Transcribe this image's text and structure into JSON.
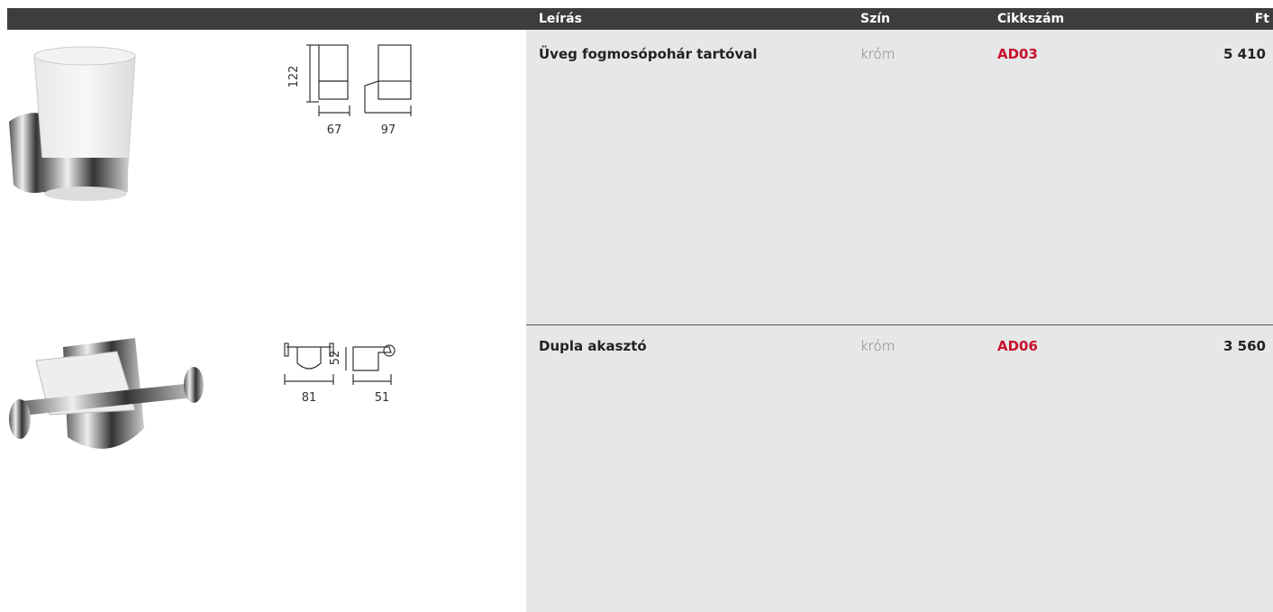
{
  "header": {
    "columns": [
      "Leírás",
      "Szín",
      "Cikkszám",
      "Ft"
    ]
  },
  "products": [
    {
      "description": "Üveg fogmosópohár tartóval",
      "color": "króm",
      "code": "AD03",
      "price": "5 410",
      "dimensions": {
        "height": 122,
        "width": 67,
        "depth": 97
      }
    },
    {
      "description": "Dupla akasztó",
      "color": "króm",
      "code": "AD06",
      "price": "3 560",
      "dimensions": {
        "width": 81,
        "height": 52,
        "depth": 51
      }
    }
  ]
}
